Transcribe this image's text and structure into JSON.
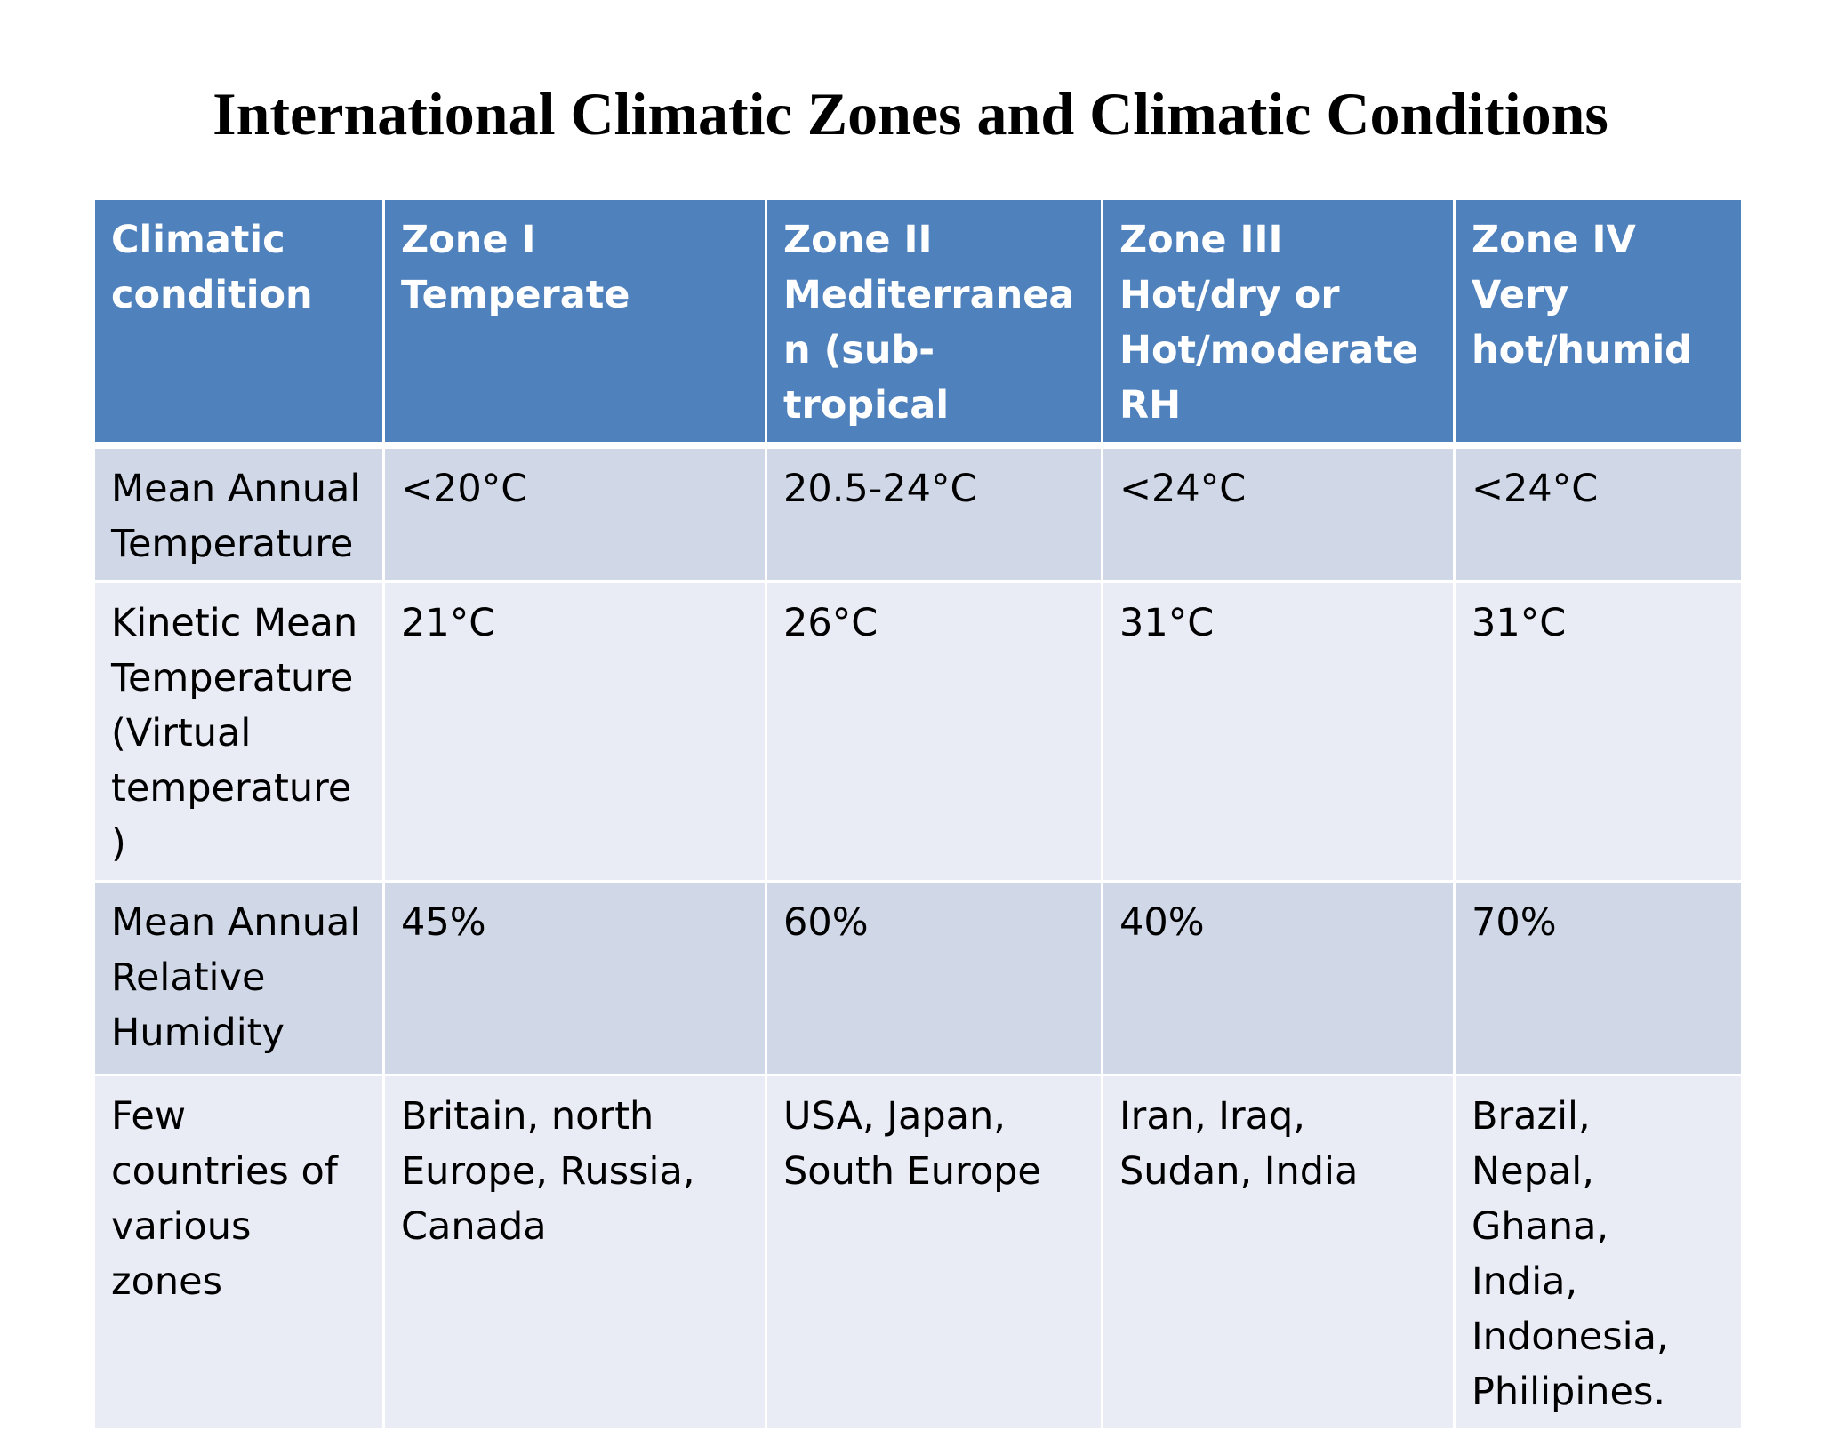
{
  "title": "International Climatic Zones and Climatic Conditions",
  "table": {
    "headers": [
      "Climatic condition",
      "Zone  I Temperate",
      "Zone II Mediterranean (sub-tropical",
      "Zone III Hot/dry or Hot/moderate RH",
      "Zone IV Very hot/humid"
    ],
    "rows": [
      [
        "Mean Annual Temperature",
        "<20°C",
        "20.5-24°C",
        "<24°C",
        "<24°C"
      ],
      [
        "Kinetic Mean Temperature (Virtual temperature)",
        "21°C",
        "26°C",
        "31°C",
        "31°C"
      ],
      [
        "Mean Annual Relative Humidity",
        "45%",
        "60%",
        "40%",
        "70%"
      ],
      [
        "Few countries of various zones",
        "Britain, north Europe, Russia, Canada",
        "USA, Japan, South Europe",
        "Iran, Iraq, Sudan, India",
        "Brazil, Nepal, Ghana, India, Indonesia, Philipines."
      ]
    ]
  },
  "colors": {
    "header_bg": "#4f81bd",
    "row_band_a": "#d0d8e8",
    "row_band_b": "#e9ebf5"
  }
}
